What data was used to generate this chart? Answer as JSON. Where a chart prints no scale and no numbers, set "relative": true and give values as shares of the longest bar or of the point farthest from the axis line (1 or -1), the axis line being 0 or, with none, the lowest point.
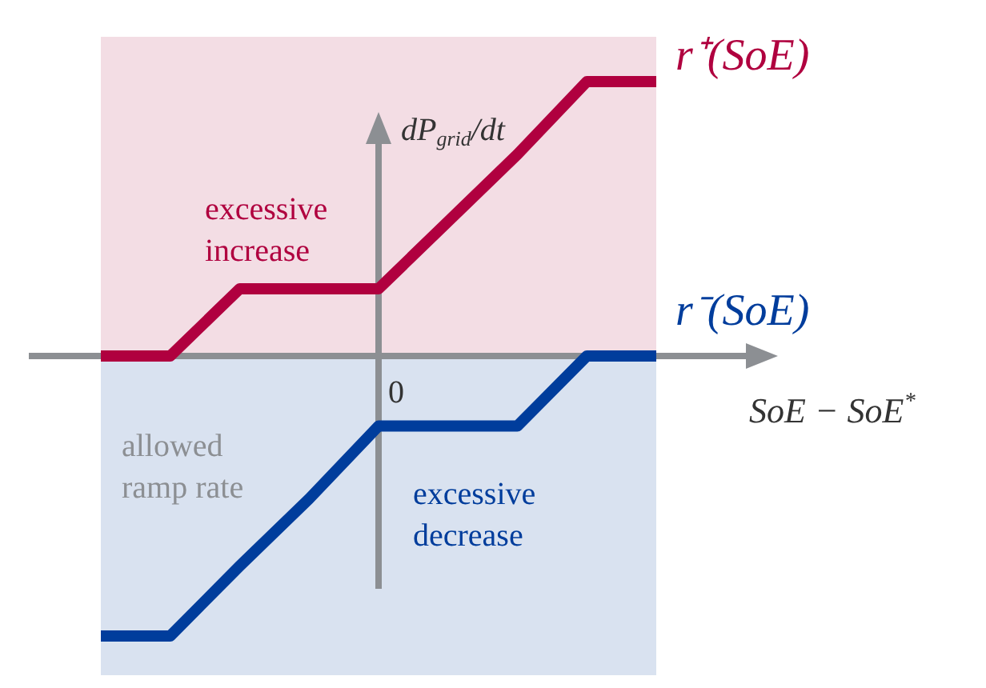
{
  "chart_data": {
    "type": "line",
    "relative": true,
    "xlabel": "SoE − SoE$^{*}$",
    "ylabel": "dP$_{grid}$/dt",
    "categories": [
      null,
      null,
      null,
      null,
      null,
      null,
      null,
      null,
      null
    ],
    "series": [
      {
        "name": "r⁺(SoE)",
        "color": "#b0003f",
        "values": [
          0,
          0,
          0.24,
          0.24,
          0.24,
          0.48,
          0.72,
          0.98,
          0.98
        ]
      },
      {
        "name": "r⁻(SoE)",
        "color": "#003d9c",
        "values": [
          -1,
          -1,
          -0.75,
          -0.51,
          -0.25,
          -0.25,
          -0.25,
          0,
          0
        ]
      }
    ],
    "bands": [
      {
        "axis": "y",
        "from": 0,
        "to": 1.14,
        "color": "#f3dde4"
      },
      {
        "axis": "y",
        "from": -1.14,
        "to": 0,
        "color": "#d9e2f0"
      }
    ],
    "annotations": [
      "excessive increase",
      "allowed ramp rate",
      "excessive decrease",
      "0"
    ],
    "legend": false,
    "marker": "none",
    "line_style": "solid"
  }
}
